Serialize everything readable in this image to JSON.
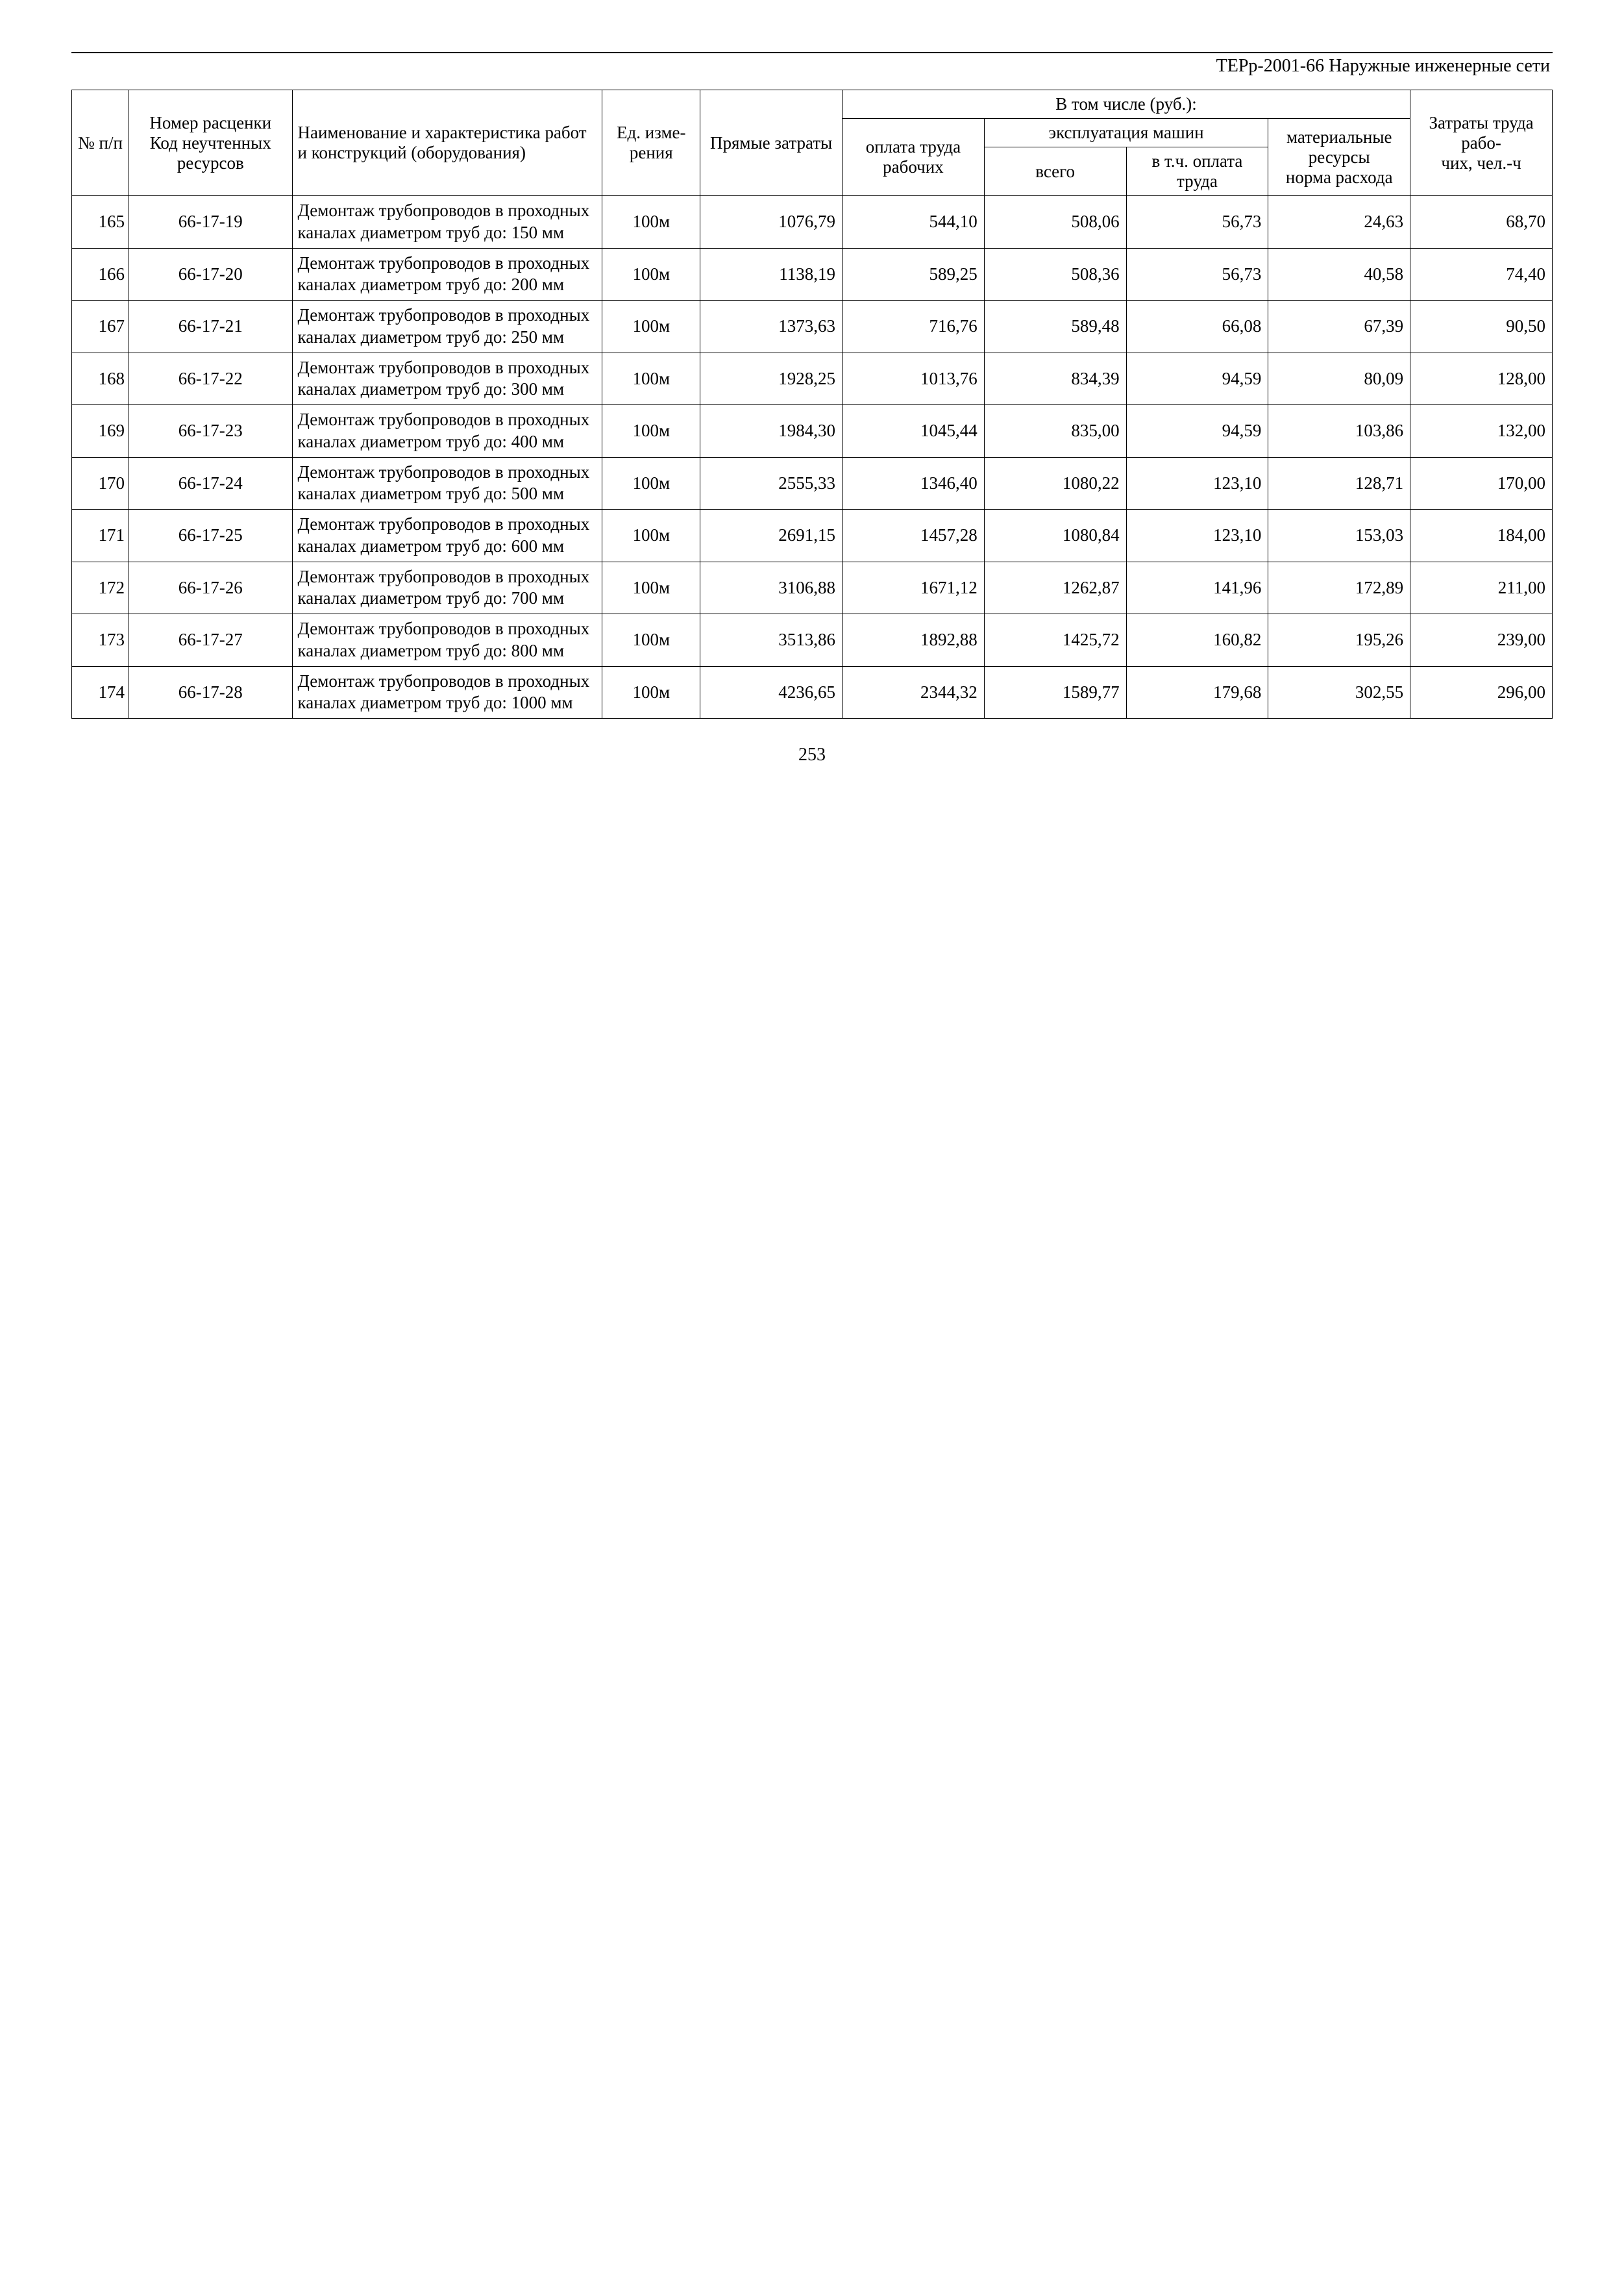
{
  "doc_header": "ТЕРр-2001-66 Наружные инженерные сети",
  "page_number": "253",
  "table": {
    "header": {
      "col_num": "№ п/п",
      "col_code": "Номер расценки Код неучтенных ресурсов",
      "col_desc": "Наименование и характеристика работ и конструкций (оборудования)",
      "col_unit": "Ед. изме­рения",
      "col_direct": "Прямые затраты",
      "group_included": "В том числе (руб.):",
      "col_labor": "оплата труда рабочих",
      "group_machines": "эксплуатация машин",
      "col_machines_total": "всего",
      "col_machines_labor": "в т.ч. оплата труда",
      "col_materials_top": "матери­альные ресурсы",
      "col_materials_bottom": "норма расхода",
      "col_labor_costs_top": "Затра­ты труда рабо-",
      "col_labor_costs_bottom": "чих, чел.-ч"
    },
    "rows": [
      {
        "num": "165",
        "code": "66-17-19",
        "desc": "Демонтаж трубопроводов в проходных каналах диаметром труб до: 150 мм",
        "unit": "100м",
        "direct": "1076,79",
        "labor": "544,10",
        "mach_total": "508,06",
        "mach_labor": "56,73",
        "materials": "24,63",
        "labor_hours": "68,70"
      },
      {
        "num": "166",
        "code": "66-17-20",
        "desc": "Демонтаж трубопроводов в проходных каналах диаметром труб до: 200 мм",
        "unit": "100м",
        "direct": "1138,19",
        "labor": "589,25",
        "mach_total": "508,36",
        "mach_labor": "56,73",
        "materials": "40,58",
        "labor_hours": "74,40"
      },
      {
        "num": "167",
        "code": "66-17-21",
        "desc": "Демонтаж трубопроводов в проходных каналах диаметром труб до: 250 мм",
        "unit": "100м",
        "direct": "1373,63",
        "labor": "716,76",
        "mach_total": "589,48",
        "mach_labor": "66,08",
        "materials": "67,39",
        "labor_hours": "90,50"
      },
      {
        "num": "168",
        "code": "66-17-22",
        "desc": "Демонтаж трубопроводов в проходных каналах диаметром труб до: 300 мм",
        "unit": "100м",
        "direct": "1928,25",
        "labor": "1013,76",
        "mach_total": "834,39",
        "mach_labor": "94,59",
        "materials": "80,09",
        "labor_hours": "128,00"
      },
      {
        "num": "169",
        "code": "66-17-23",
        "desc": "Демонтаж трубопроводов в проходных каналах диаметром труб до: 400 мм",
        "unit": "100м",
        "direct": "1984,30",
        "labor": "1045,44",
        "mach_total": "835,00",
        "mach_labor": "94,59",
        "materials": "103,86",
        "labor_hours": "132,00"
      },
      {
        "num": "170",
        "code": "66-17-24",
        "desc": "Демонтаж трубопроводов в проходных каналах диаметром труб до: 500 мм",
        "unit": "100м",
        "direct": "2555,33",
        "labor": "1346,40",
        "mach_total": "1080,22",
        "mach_labor": "123,10",
        "materials": "128,71",
        "labor_hours": "170,00"
      },
      {
        "num": "171",
        "code": "66-17-25",
        "desc": "Демонтаж трубопроводов в проходных каналах диаметром труб до: 600 мм",
        "unit": "100м",
        "direct": "2691,15",
        "labor": "1457,28",
        "mach_total": "1080,84",
        "mach_labor": "123,10",
        "materials": "153,03",
        "labor_hours": "184,00"
      },
      {
        "num": "172",
        "code": "66-17-26",
        "desc": "Демонтаж трубопроводов в проходных каналах диаметром труб до: 700 мм",
        "unit": "100м",
        "direct": "3106,88",
        "labor": "1671,12",
        "mach_total": "1262,87",
        "mach_labor": "141,96",
        "materials": "172,89",
        "labor_hours": "211,00"
      },
      {
        "num": "173",
        "code": "66-17-27",
        "desc": "Демонтаж трубопроводов в проходных каналах диаметром труб до: 800 мм",
        "unit": "100м",
        "direct": "3513,86",
        "labor": "1892,88",
        "mach_total": "1425,72",
        "mach_labor": "160,82",
        "materials": "195,26",
        "labor_hours": "239,00"
      },
      {
        "num": "174",
        "code": "66-17-28",
        "desc": "Демонтаж трубопроводов в проходных каналах диаметром труб до: 1000 мм",
        "unit": "100м",
        "direct": "4236,65",
        "labor": "2344,32",
        "mach_total": "1589,77",
        "mach_labor": "179,68",
        "materials": "302,55",
        "labor_hours": "296,00"
      }
    ]
  }
}
